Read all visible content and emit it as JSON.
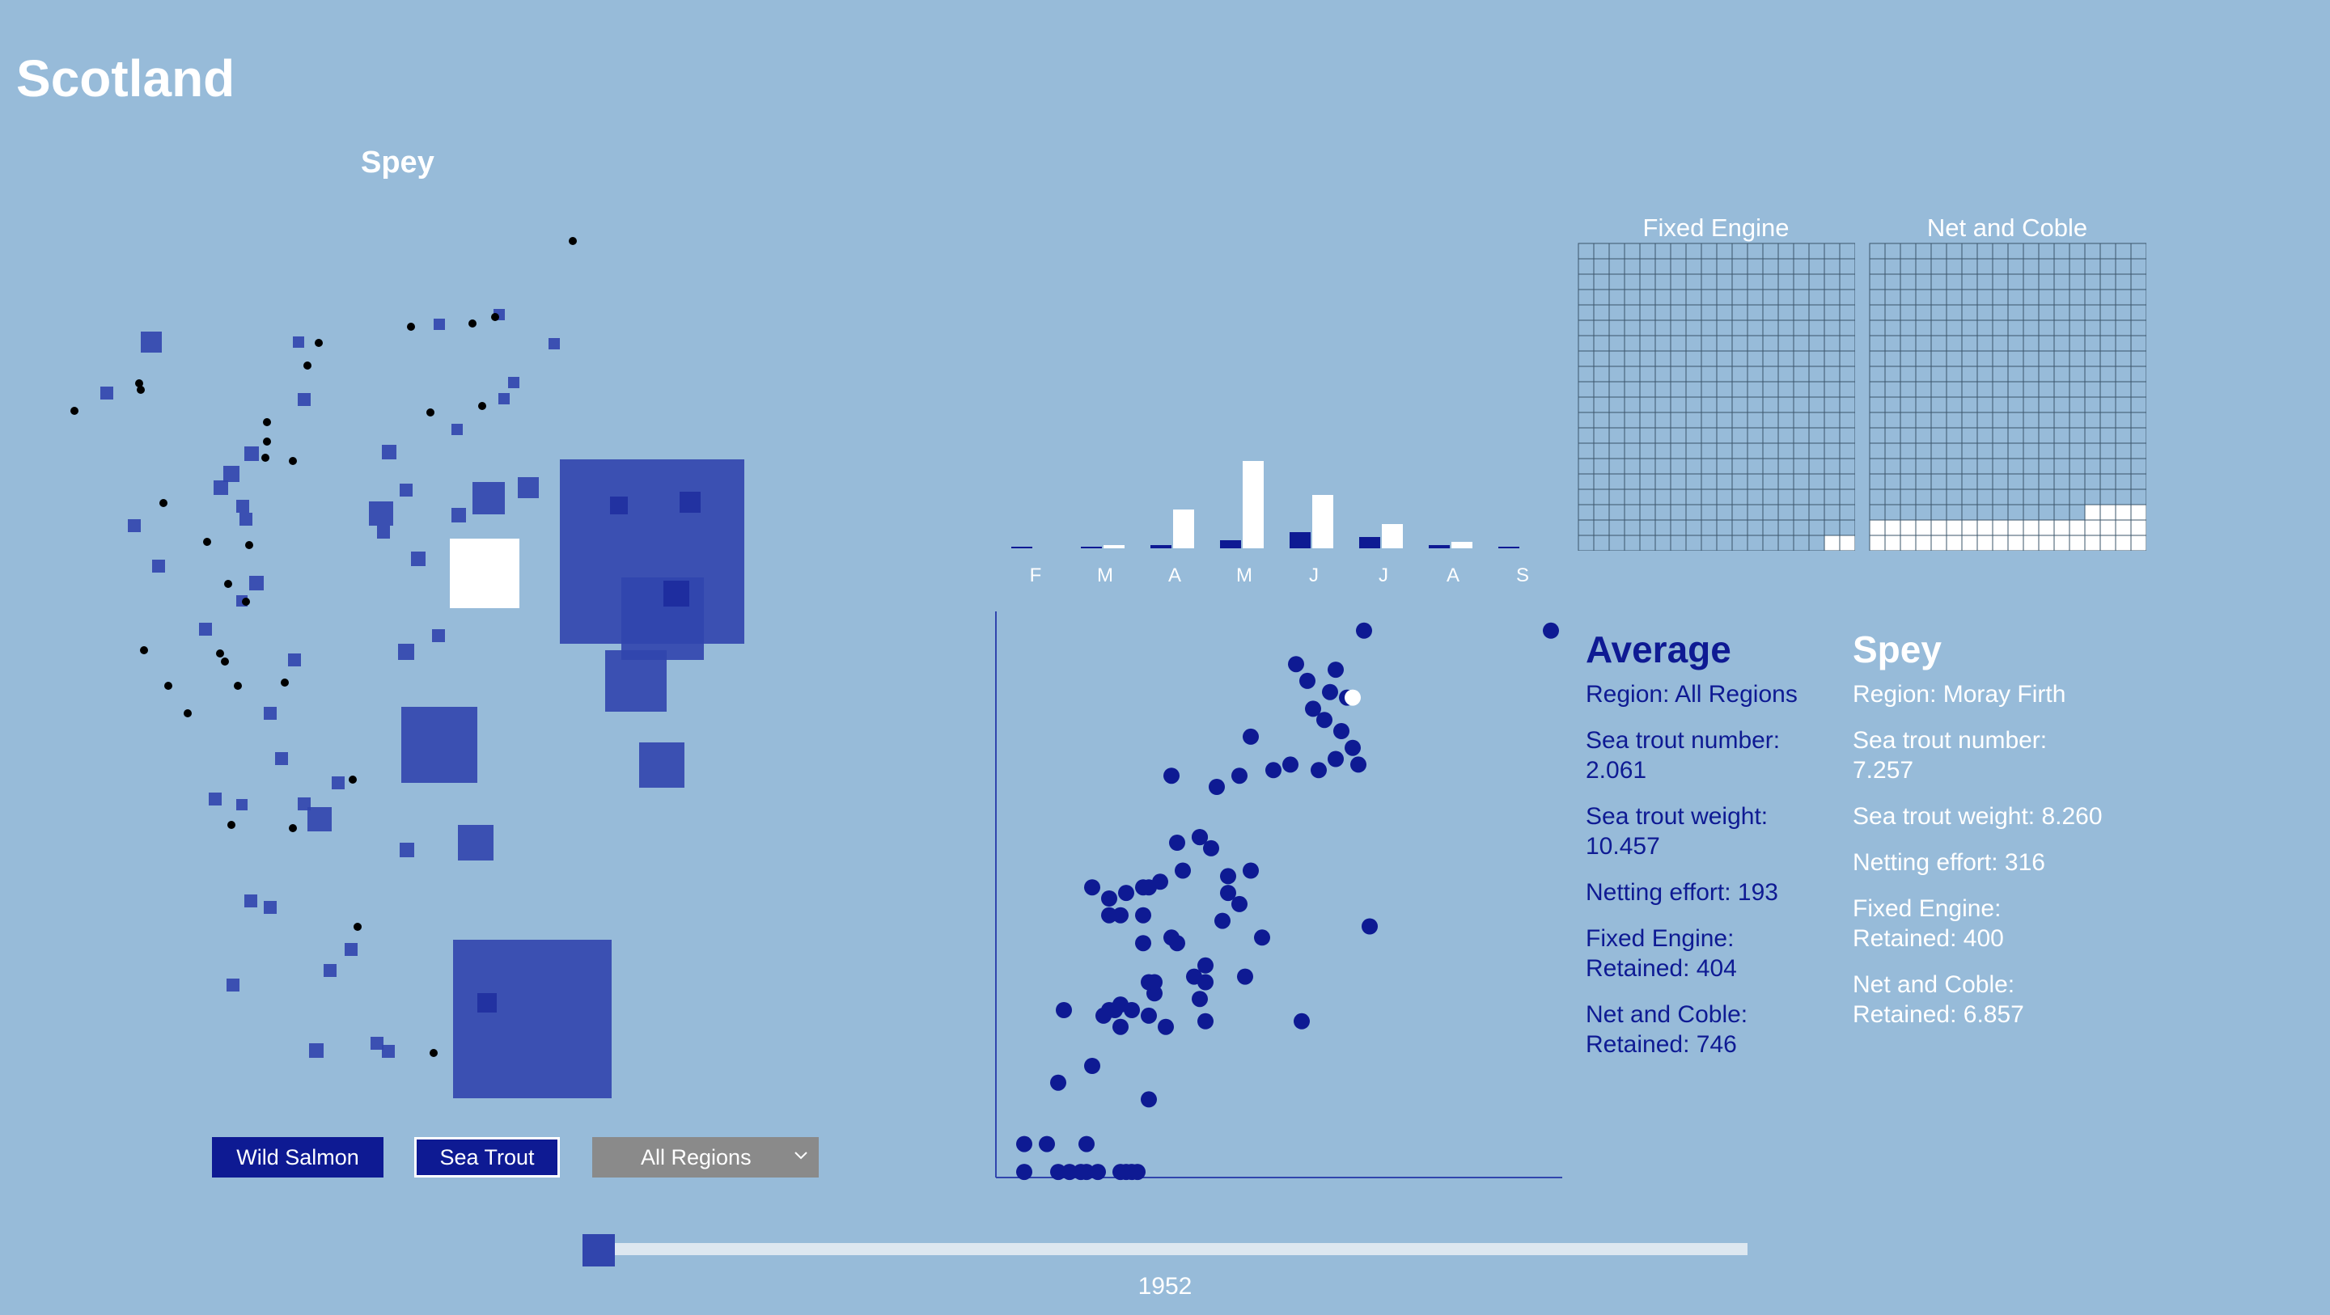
{
  "header": {
    "title": "Scotland",
    "region_name": "Spey"
  },
  "controls": {
    "wild_salmon_label": "Wild Salmon",
    "sea_trout_label": "Sea Trout",
    "region_select_value": "All Regions",
    "selected_species": "Sea Trout"
  },
  "slider": {
    "year": "1952"
  },
  "colors": {
    "background": "#97bbd9",
    "dark_blue": "#0e1a93",
    "map_square": "#3145ad",
    "white": "#ffffff",
    "select_grey": "#8a8a8a"
  },
  "grids": {
    "fixed_engine_title": "Fixed Engine",
    "net_coble_title": "Net and Coble",
    "rows": 20,
    "cols": 18,
    "fixed_engine_filled_cells": 2,
    "net_coble_filled_cells": 40
  },
  "monthly_chart": {
    "type": "bar",
    "categories": [
      "F",
      "M",
      "A",
      "M",
      "J",
      "J",
      "A",
      "S"
    ],
    "series": [
      {
        "values": [
          0.5,
          1,
          2,
          5,
          10,
          7,
          2,
          0.5
        ],
        "color": "dark_blue"
      },
      {
        "values": [
          0,
          2,
          24,
          54,
          33,
          15,
          4,
          0
        ],
        "color": "white"
      }
    ]
  },
  "info": {
    "average": {
      "heading": "Average",
      "region": "Region: All Regions",
      "sea_trout_number": "Sea trout number: 2.061",
      "sea_trout_weight": "Sea trout weight: 10.457",
      "netting_effort": "Netting effort: 193",
      "fixed_engine": "Fixed Engine: Retained: 404",
      "net_coble": "Net and Coble: Retained: 746"
    },
    "selected": {
      "heading": "Spey",
      "region": "Region: Moray Firth",
      "sea_trout_number": "Sea trout number: 7.257",
      "sea_trout_weight": "Sea trout weight: 8.260",
      "netting_effort": "Netting effort: 316",
      "fixed_engine": "Fixed Engine: Retained: 400",
      "net_coble": "Net and Coble: Retained: 6.857"
    }
  },
  "chart_data": [
    {
      "type": "bar",
      "categories": [
        "F",
        "M",
        "A",
        "M",
        "J",
        "J",
        "A",
        "S"
      ],
      "series": [
        {
          "values": [
            0.5,
            1,
            2,
            5,
            10,
            7,
            2,
            0.5
          ]
        },
        {
          "values": [
            0,
            2,
            24,
            54,
            33,
            15,
            4,
            0
          ]
        }
      ]
    },
    {
      "type": "scatter",
      "xlim": [
        0,
        100
      ],
      "ylim": [
        0,
        100
      ],
      "points": [
        [
          65,
          98
        ],
        [
          60,
          91
        ],
        [
          59,
          87
        ],
        [
          55,
          89
        ],
        [
          53,
          92
        ],
        [
          62,
          86
        ],
        [
          61,
          80
        ],
        [
          58,
          82
        ],
        [
          56,
          84
        ],
        [
          63,
          77
        ],
        [
          64,
          74
        ],
        [
          60,
          75
        ],
        [
          52,
          74
        ],
        [
          49,
          73
        ],
        [
          45,
          79
        ],
        [
          39,
          70
        ],
        [
          31,
          72
        ],
        [
          45,
          55
        ],
        [
          41,
          54
        ],
        [
          41,
          51
        ],
        [
          40,
          46
        ],
        [
          43,
          49
        ],
        [
          38,
          59
        ],
        [
          36,
          61
        ],
        [
          32,
          60
        ],
        [
          29,
          53
        ],
        [
          33,
          55
        ],
        [
          20,
          50
        ],
        [
          27,
          52
        ],
        [
          31,
          43
        ],
        [
          26,
          52
        ],
        [
          23,
          51
        ],
        [
          22,
          47
        ],
        [
          26,
          47
        ],
        [
          37,
          38
        ],
        [
          37,
          35
        ],
        [
          35,
          36
        ],
        [
          44,
          36
        ],
        [
          47,
          43
        ],
        [
          36,
          32
        ],
        [
          32,
          42
        ],
        [
          27,
          29
        ],
        [
          28,
          33
        ],
        [
          27,
          35
        ],
        [
          26,
          42
        ],
        [
          17,
          52
        ],
        [
          20,
          47
        ],
        [
          27,
          14
        ],
        [
          11,
          17
        ],
        [
          12,
          30
        ],
        [
          19,
          29
        ],
        [
          20,
          30
        ],
        [
          22,
          31
        ],
        [
          22,
          27
        ],
        [
          21,
          30
        ],
        [
          24,
          30
        ],
        [
          37,
          28
        ],
        [
          54,
          28
        ],
        [
          66,
          45
        ],
        [
          5,
          6
        ],
        [
          9,
          6
        ],
        [
          16,
          1
        ],
        [
          16,
          6
        ],
        [
          5,
          1
        ],
        [
          11,
          1
        ],
        [
          13,
          1
        ],
        [
          15,
          1
        ],
        [
          18,
          1
        ],
        [
          22,
          1
        ],
        [
          23,
          1
        ],
        [
          24,
          1
        ],
        [
          25,
          1
        ],
        [
          17,
          20
        ],
        [
          28,
          35
        ],
        [
          30,
          27
        ],
        [
          43,
          72
        ],
        [
          36,
          61
        ],
        [
          57,
          73
        ],
        [
          98,
          98
        ]
      ],
      "highlight_point": [
        63,
        86
      ]
    }
  ]
}
